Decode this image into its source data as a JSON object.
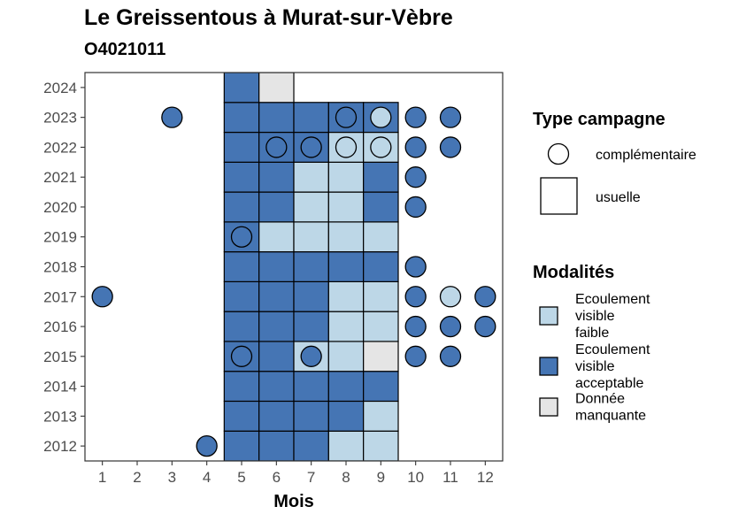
{
  "title": "Le Greissentous à Murat-sur-Vèbre",
  "subtitle": "O4021011",
  "chart_data": {
    "type": "heatmap",
    "xlabel": "Mois",
    "ylabel": "",
    "x_ticks": [
      1,
      2,
      3,
      4,
      5,
      6,
      7,
      8,
      9,
      10,
      11,
      12
    ],
    "y_ticks": [
      2012,
      2013,
      2014,
      2015,
      2016,
      2017,
      2018,
      2019,
      2020,
      2021,
      2022,
      2023,
      2024
    ],
    "xlim": [
      0.5,
      12.5
    ],
    "ylim": [
      2011.5,
      2024.5
    ],
    "grid": false,
    "legend_placement": "right",
    "colors": {
      "faible": "#bdd7e7",
      "acceptable": "#4575b4",
      "manquante": "#e5e5e5"
    },
    "usuelle": [
      {
        "year": 2012,
        "months": {
          "5": "acceptable",
          "6": "acceptable",
          "7": "acceptable",
          "8": "faible",
          "9": "faible"
        }
      },
      {
        "year": 2013,
        "months": {
          "5": "acceptable",
          "6": "acceptable",
          "7": "acceptable",
          "8": "acceptable",
          "9": "faible"
        }
      },
      {
        "year": 2014,
        "months": {
          "5": "acceptable",
          "6": "acceptable",
          "7": "acceptable",
          "8": "acceptable",
          "9": "acceptable"
        }
      },
      {
        "year": 2015,
        "months": {
          "5": "acceptable",
          "6": "acceptable",
          "7": "faible",
          "8": "faible",
          "9": "manquante"
        }
      },
      {
        "year": 2016,
        "months": {
          "5": "acceptable",
          "6": "acceptable",
          "7": "acceptable",
          "8": "faible",
          "9": "faible"
        }
      },
      {
        "year": 2017,
        "months": {
          "5": "acceptable",
          "6": "acceptable",
          "7": "acceptable",
          "8": "faible",
          "9": "faible"
        }
      },
      {
        "year": 2018,
        "months": {
          "5": "acceptable",
          "6": "acceptable",
          "7": "acceptable",
          "8": "acceptable",
          "9": "acceptable"
        }
      },
      {
        "year": 2019,
        "months": {
          "5": "acceptable",
          "6": "faible",
          "7": "faible",
          "8": "faible",
          "9": "faible"
        }
      },
      {
        "year": 2020,
        "months": {
          "5": "acceptable",
          "6": "acceptable",
          "7": "faible",
          "8": "faible",
          "9": "acceptable"
        }
      },
      {
        "year": 2021,
        "months": {
          "5": "acceptable",
          "6": "acceptable",
          "7": "faible",
          "8": "faible",
          "9": "acceptable"
        }
      },
      {
        "year": 2022,
        "months": {
          "5": "acceptable",
          "6": "acceptable",
          "7": "acceptable",
          "8": "faible",
          "9": "faible"
        }
      },
      {
        "year": 2023,
        "months": {
          "5": "acceptable",
          "6": "acceptable",
          "7": "acceptable",
          "8": "acceptable",
          "9": "acceptable"
        }
      },
      {
        "year": 2024,
        "months": {
          "5": "acceptable",
          "6": "manquante"
        }
      }
    ],
    "complementaire": [
      {
        "year": 2012,
        "month": 4,
        "modalite": "acceptable"
      },
      {
        "year": 2015,
        "month": 5,
        "modalite": "acceptable"
      },
      {
        "year": 2015,
        "month": 7,
        "modalite": "acceptable"
      },
      {
        "year": 2015,
        "month": 10,
        "modalite": "acceptable"
      },
      {
        "year": 2015,
        "month": 11,
        "modalite": "acceptable"
      },
      {
        "year": 2016,
        "month": 10,
        "modalite": "acceptable"
      },
      {
        "year": 2016,
        "month": 11,
        "modalite": "acceptable"
      },
      {
        "year": 2016,
        "month": 12,
        "modalite": "acceptable"
      },
      {
        "year": 2017,
        "month": 1,
        "modalite": "acceptable"
      },
      {
        "year": 2017,
        "month": 10,
        "modalite": "acceptable"
      },
      {
        "year": 2017,
        "month": 11,
        "modalite": "faible"
      },
      {
        "year": 2017,
        "month": 12,
        "modalite": "acceptable"
      },
      {
        "year": 2018,
        "month": 10,
        "modalite": "acceptable"
      },
      {
        "year": 2019,
        "month": 5,
        "modalite": "acceptable"
      },
      {
        "year": 2020,
        "month": 10,
        "modalite": "acceptable"
      },
      {
        "year": 2021,
        "month": 10,
        "modalite": "acceptable"
      },
      {
        "year": 2022,
        "month": 6,
        "modalite": "acceptable"
      },
      {
        "year": 2022,
        "month": 7,
        "modalite": "acceptable"
      },
      {
        "year": 2022,
        "month": 8,
        "modalite": "faible"
      },
      {
        "year": 2022,
        "month": 9,
        "modalite": "faible"
      },
      {
        "year": 2022,
        "month": 10,
        "modalite": "acceptable"
      },
      {
        "year": 2022,
        "month": 11,
        "modalite": "acceptable"
      },
      {
        "year": 2023,
        "month": 3,
        "modalite": "acceptable"
      },
      {
        "year": 2023,
        "month": 8,
        "modalite": "acceptable"
      },
      {
        "year": 2023,
        "month": 9,
        "modalite": "faible"
      },
      {
        "year": 2023,
        "month": 10,
        "modalite": "acceptable"
      },
      {
        "year": 2023,
        "month": 11,
        "modalite": "acceptable"
      }
    ],
    "legend": {
      "type_title": "Type campagne",
      "type_complementaire": "complémentaire",
      "type_usuelle": "usuelle",
      "modalites_title": "Modalités",
      "modalites": [
        {
          "key": "faible",
          "lines": [
            "Ecoulement",
            "visible",
            "faible"
          ]
        },
        {
          "key": "acceptable",
          "lines": [
            "Ecoulement",
            "visible",
            "acceptable"
          ]
        },
        {
          "key": "manquante",
          "lines": [
            "Donnée",
            "manquante"
          ]
        }
      ]
    }
  }
}
